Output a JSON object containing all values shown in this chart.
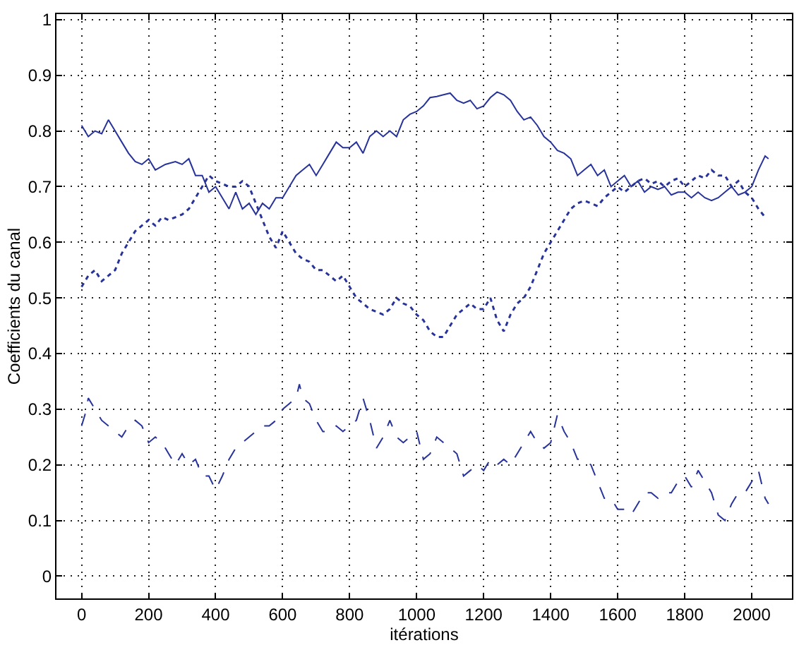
{
  "chart_data": {
    "type": "line",
    "xlabel": "itérations",
    "ylabel": "Coefficients du canal",
    "xlim": [
      -75,
      2120
    ],
    "ylim": [
      -0.04,
      1.01
    ],
    "xticks": [
      0,
      200,
      400,
      600,
      800,
      1000,
      1200,
      1400,
      1600,
      1800,
      2000
    ],
    "yticks": [
      0,
      0.1,
      0.2,
      0.3,
      0.4,
      0.5,
      0.6,
      0.7,
      0.8,
      0.9,
      1
    ],
    "grid": true,
    "marker": "none",
    "series": [
      {
        "color": "#27339a",
        "line_style": "solid",
        "x": [
          0,
          20,
          40,
          60,
          80,
          100,
          120,
          140,
          160,
          180,
          200,
          220,
          250,
          280,
          300,
          320,
          340,
          360,
          380,
          400,
          420,
          440,
          460,
          480,
          500,
          520,
          540,
          560,
          580,
          600,
          620,
          640,
          660,
          680,
          700,
          720,
          740,
          760,
          780,
          800,
          820,
          840,
          860,
          880,
          900,
          920,
          940,
          960,
          980,
          1000,
          1020,
          1040,
          1060,
          1080,
          1100,
          1120,
          1140,
          1160,
          1180,
          1200,
          1220,
          1240,
          1260,
          1280,
          1300,
          1320,
          1340,
          1360,
          1380,
          1400,
          1420,
          1440,
          1460,
          1480,
          1500,
          1520,
          1540,
          1560,
          1580,
          1600,
          1620,
          1640,
          1660,
          1680,
          1700,
          1720,
          1740,
          1760,
          1780,
          1800,
          1820,
          1840,
          1860,
          1880,
          1900,
          1920,
          1940,
          1960,
          1980,
          2000,
          2020,
          2040,
          2050
        ],
        "values": [
          0.81,
          0.79,
          0.8,
          0.795,
          0.82,
          0.8,
          0.78,
          0.76,
          0.745,
          0.74,
          0.75,
          0.73,
          0.74,
          0.745,
          0.74,
          0.75,
          0.72,
          0.72,
          0.69,
          0.7,
          0.68,
          0.66,
          0.69,
          0.66,
          0.67,
          0.65,
          0.67,
          0.66,
          0.68,
          0.68,
          0.7,
          0.72,
          0.73,
          0.74,
          0.72,
          0.74,
          0.76,
          0.78,
          0.77,
          0.77,
          0.78,
          0.76,
          0.79,
          0.8,
          0.79,
          0.8,
          0.79,
          0.82,
          0.83,
          0.835,
          0.845,
          0.86,
          0.862,
          0.865,
          0.868,
          0.855,
          0.85,
          0.855,
          0.84,
          0.845,
          0.86,
          0.87,
          0.865,
          0.855,
          0.835,
          0.82,
          0.825,
          0.81,
          0.79,
          0.78,
          0.765,
          0.76,
          0.75,
          0.72,
          0.73,
          0.74,
          0.72,
          0.73,
          0.7,
          0.71,
          0.72,
          0.7,
          0.71,
          0.69,
          0.7,
          0.695,
          0.7,
          0.685,
          0.69,
          0.69,
          0.68,
          0.69,
          0.68,
          0.675,
          0.68,
          0.69,
          0.7,
          0.685,
          0.69,
          0.7,
          0.73,
          0.755,
          0.75
        ]
      },
      {
        "color": "#27339a",
        "line_style": "dotted",
        "x": [
          0,
          20,
          40,
          60,
          80,
          100,
          120,
          140,
          160,
          180,
          200,
          220,
          240,
          260,
          280,
          300,
          320,
          340,
          360,
          380,
          400,
          420,
          440,
          460,
          480,
          500,
          520,
          540,
          560,
          580,
          600,
          620,
          640,
          660,
          680,
          700,
          720,
          740,
          760,
          780,
          800,
          820,
          840,
          860,
          880,
          900,
          920,
          940,
          960,
          980,
          1000,
          1020,
          1040,
          1060,
          1080,
          1100,
          1120,
          1140,
          1160,
          1180,
          1200,
          1220,
          1240,
          1260,
          1280,
          1300,
          1320,
          1340,
          1360,
          1380,
          1400,
          1420,
          1440,
          1460,
          1480,
          1500,
          1520,
          1540,
          1560,
          1580,
          1600,
          1620,
          1640,
          1660,
          1680,
          1700,
          1720,
          1740,
          1760,
          1780,
          1800,
          1820,
          1840,
          1860,
          1880,
          1900,
          1920,
          1940,
          1960,
          1980,
          2000,
          2020,
          2040
        ],
        "values": [
          0.52,
          0.54,
          0.55,
          0.53,
          0.54,
          0.55,
          0.58,
          0.6,
          0.62,
          0.63,
          0.64,
          0.63,
          0.645,
          0.64,
          0.645,
          0.65,
          0.66,
          0.68,
          0.7,
          0.72,
          0.71,
          0.705,
          0.7,
          0.7,
          0.71,
          0.7,
          0.67,
          0.64,
          0.61,
          0.59,
          0.62,
          0.6,
          0.58,
          0.57,
          0.565,
          0.55,
          0.55,
          0.54,
          0.53,
          0.54,
          0.52,
          0.5,
          0.49,
          0.48,
          0.475,
          0.47,
          0.48,
          0.5,
          0.49,
          0.485,
          0.47,
          0.46,
          0.44,
          0.43,
          0.43,
          0.45,
          0.47,
          0.48,
          0.49,
          0.48,
          0.48,
          0.5,
          0.46,
          0.44,
          0.47,
          0.49,
          0.5,
          0.52,
          0.55,
          0.58,
          0.6,
          0.62,
          0.64,
          0.66,
          0.67,
          0.675,
          0.67,
          0.665,
          0.68,
          0.69,
          0.7,
          0.69,
          0.7,
          0.71,
          0.715,
          0.705,
          0.71,
          0.7,
          0.71,
          0.715,
          0.7,
          0.71,
          0.72,
          0.715,
          0.73,
          0.72,
          0.72,
          0.7,
          0.71,
          0.69,
          0.68,
          0.66,
          0.645
        ]
      },
      {
        "color": "#27339a",
        "line_style": "dashed",
        "x": [
          0,
          10,
          20,
          40,
          60,
          80,
          100,
          120,
          140,
          160,
          180,
          200,
          220,
          240,
          260,
          280,
          300,
          320,
          340,
          360,
          380,
          400,
          420,
          440,
          460,
          480,
          500,
          520,
          540,
          560,
          580,
          600,
          620,
          640,
          650,
          660,
          680,
          700,
          720,
          740,
          760,
          780,
          800,
          820,
          840,
          860,
          880,
          900,
          920,
          940,
          960,
          980,
          1000,
          1020,
          1040,
          1060,
          1080,
          1100,
          1120,
          1140,
          1160,
          1180,
          1200,
          1220,
          1240,
          1260,
          1280,
          1300,
          1320,
          1340,
          1360,
          1380,
          1400,
          1420,
          1440,
          1460,
          1480,
          1500,
          1520,
          1540,
          1560,
          1580,
          1600,
          1620,
          1640,
          1660,
          1680,
          1700,
          1720,
          1740,
          1760,
          1780,
          1800,
          1820,
          1840,
          1860,
          1880,
          1900,
          1920,
          1940,
          1960,
          1980,
          2000,
          2020,
          2040,
          2050
        ],
        "values": [
          0.27,
          0.29,
          0.32,
          0.3,
          0.28,
          0.27,
          0.26,
          0.25,
          0.27,
          0.28,
          0.27,
          0.24,
          0.25,
          0.24,
          0.22,
          0.2,
          0.22,
          0.2,
          0.21,
          0.18,
          0.18,
          0.155,
          0.18,
          0.21,
          0.23,
          0.24,
          0.25,
          0.26,
          0.27,
          0.27,
          0.28,
          0.3,
          0.31,
          0.32,
          0.345,
          0.32,
          0.31,
          0.28,
          0.26,
          0.26,
          0.27,
          0.26,
          0.27,
          0.28,
          0.32,
          0.28,
          0.23,
          0.25,
          0.28,
          0.25,
          0.24,
          0.25,
          0.26,
          0.21,
          0.22,
          0.25,
          0.24,
          0.23,
          0.22,
          0.18,
          0.19,
          0.2,
          0.19,
          0.21,
          0.2,
          0.21,
          0.2,
          0.22,
          0.24,
          0.26,
          0.24,
          0.23,
          0.24,
          0.29,
          0.26,
          0.24,
          0.21,
          0.21,
          0.2,
          0.17,
          0.14,
          0.14,
          0.12,
          0.12,
          0.11,
          0.13,
          0.15,
          0.15,
          0.14,
          0.15,
          0.15,
          0.17,
          0.18,
          0.16,
          0.19,
          0.17,
          0.15,
          0.11,
          0.1,
          0.13,
          0.15,
          0.15,
          0.17,
          0.19,
          0.14,
          0.13
        ]
      }
    ]
  }
}
